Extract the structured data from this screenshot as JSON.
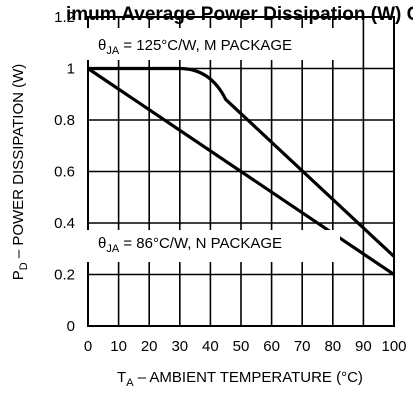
{
  "chart_data": {
    "type": "line",
    "title": "imum Average Power Dissipation (W) C, I",
    "xlabel": {
      "main": "T",
      "sub": "A",
      "rest": " – AMBIENT TEMPERATURE (°C)"
    },
    "ylabel": {
      "main": "P",
      "sub": "D",
      "rest": " – POWER DISSIPATION (W)"
    },
    "xlim": [
      0,
      100
    ],
    "ylim": [
      0,
      1.2
    ],
    "x_ticks": [
      0,
      10,
      20,
      30,
      40,
      50,
      60,
      70,
      80,
      90,
      100
    ],
    "x_tick_labels": [
      "0",
      "10",
      "20",
      "30",
      "40",
      "50",
      "60",
      "70",
      "80",
      "90",
      "100"
    ],
    "y_ticks": [
      0,
      0.2,
      0.4,
      0.6,
      0.8,
      1,
      1.2
    ],
    "y_tick_labels": [
      "0",
      "0.2",
      "0.4",
      "0.6",
      "0.8",
      "1",
      "1.2"
    ],
    "grid": true,
    "series": [
      {
        "name": "M PACKAGE",
        "x": [
          0,
          30,
          36,
          40,
          42,
          45,
          100
        ],
        "y": [
          1.0,
          1.0,
          0.995,
          0.975,
          0.95,
          0.88,
          0.27
        ]
      },
      {
        "name": "N PACKAGE",
        "x": [
          0,
          100
        ],
        "y": [
          1.0,
          0.2
        ]
      }
    ],
    "annotations": [
      {
        "theta": "θ",
        "sub": "JA",
        "rest": " = 125°C/W, M PACKAGE"
      },
      {
        "theta": "θ",
        "sub": "JA",
        "rest": " = 86°C/W, N PACKAGE"
      }
    ],
    "colors": {
      "line": "#000000",
      "grid": "#000000",
      "background": "#ffffff"
    }
  }
}
